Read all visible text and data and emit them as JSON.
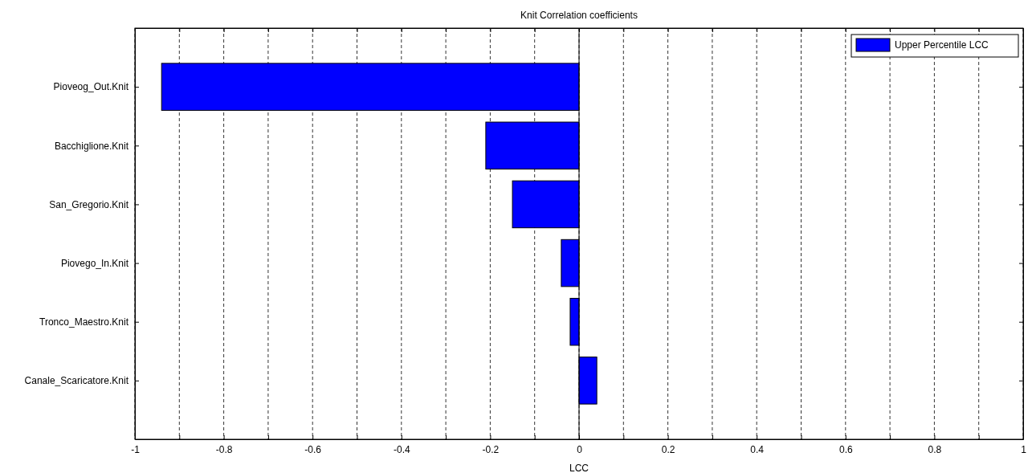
{
  "chart_data": {
    "type": "bar",
    "orientation": "horizontal",
    "title": "Knit Correlation coefficients",
    "xlabel": "LCC",
    "categories": [
      "Pioveog_Out.Knit",
      "Bacchiglione.Knit",
      "San_Gregorio.Knit",
      "Piovego_In.Knit",
      "Tronco_Maestro.Knit",
      "Canale_Scaricatore.Knit"
    ],
    "series": [
      {
        "name": "Upper Percentile LCC",
        "color": "#0000ff",
        "values": [
          -0.94,
          -0.21,
          -0.15,
          -0.04,
          -0.02,
          0.04
        ]
      }
    ],
    "xlim": [
      -1,
      1
    ],
    "xticks": [
      -1,
      {
        "value": -0.9,
        "label": null
      },
      -0.8,
      {
        "value": -0.7,
        "label": null
      },
      -0.6,
      {
        "value": -0.5,
        "label": null
      },
      -0.4,
      {
        "value": -0.3,
        "label": null
      },
      -0.2,
      {
        "value": -0.1,
        "label": null
      },
      0,
      {
        "value": 0.1,
        "label": null
      },
      0.2,
      {
        "value": 0.3,
        "label": null
      },
      0.4,
      {
        "value": 0.5,
        "label": null
      },
      0.6,
      {
        "value": 0.7,
        "label": null
      },
      0.8,
      {
        "value": 0.9,
        "label": null
      },
      1
    ],
    "grid": "x",
    "legend": "top right",
    "line_style": "dashed"
  }
}
